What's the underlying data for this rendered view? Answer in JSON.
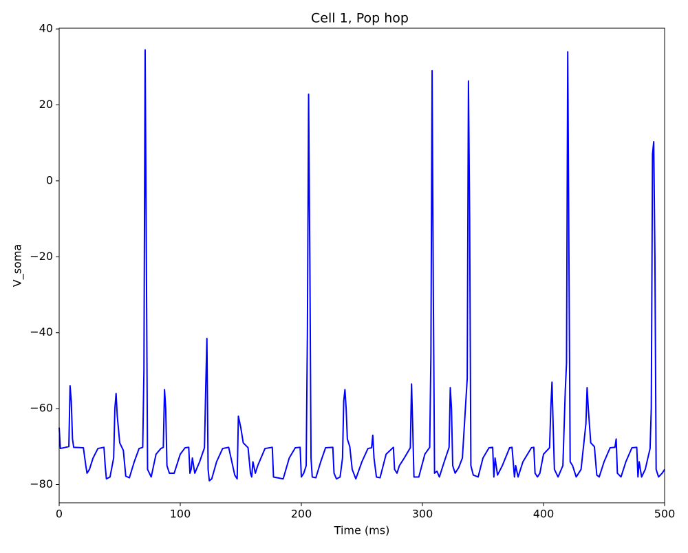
{
  "chart_data": {
    "type": "line",
    "title": "Cell 1, Pop hop",
    "x_label": "Time (ms)",
    "y_label": "V_soma",
    "color": "#0000ff",
    "xlim": [
      0,
      500
    ],
    "ylim": [
      -84.8,
      40.2
    ],
    "xticks": [
      0,
      100,
      200,
      300,
      400,
      500
    ],
    "yticks": [
      {
        "value": -80,
        "label": "−80"
      },
      {
        "value": -60,
        "label": "−60"
      },
      {
        "value": -40,
        "label": "−40"
      },
      {
        "value": -20,
        "label": "−20"
      },
      0,
      20,
      40
    ],
    "x": [
      0,
      1,
      8,
      9,
      10,
      11,
      12,
      20,
      22,
      23,
      25,
      28,
      32,
      37,
      38,
      39,
      42,
      45,
      46,
      47,
      48,
      50,
      53,
      55,
      58,
      62,
      66,
      69,
      70,
      71,
      72,
      73,
      76,
      80,
      84,
      86,
      87,
      88,
      89,
      91,
      95,
      100,
      104,
      107,
      108,
      109,
      110,
      112,
      116,
      120,
      121,
      122,
      123,
      124,
      126,
      130,
      135,
      140,
      145,
      147,
      148,
      150,
      152,
      156,
      158,
      159,
      160,
      162,
      164,
      170,
      176,
      177,
      185,
      190,
      195,
      199,
      200,
      202,
      204,
      205,
      206,
      207,
      208,
      209,
      212,
      216,
      220,
      226,
      227,
      229,
      232,
      234,
      235,
      236,
      237,
      238,
      240,
      242,
      245,
      250,
      255,
      258,
      259,
      260,
      262,
      265,
      270,
      276,
      277,
      279,
      281,
      285,
      290,
      291,
      292,
      293,
      297,
      302,
      306,
      307,
      308,
      309,
      310,
      312,
      314,
      318,
      322,
      323,
      324,
      325,
      327,
      330,
      333,
      337,
      338,
      339,
      340,
      342,
      346,
      350,
      355,
      358,
      359,
      360,
      362,
      366,
      372,
      374,
      376,
      377,
      379,
      383,
      390,
      392,
      393,
      395,
      397,
      400,
      405,
      406,
      407,
      408,
      409,
      412,
      416,
      418,
      419,
      420,
      421,
      422,
      424,
      427,
      431,
      435,
      436,
      437,
      439,
      442,
      444,
      446,
      450,
      455,
      459,
      460,
      461,
      464,
      468,
      473,
      477,
      478,
      479,
      481,
      484,
      488,
      489,
      490,
      491,
      492,
      493,
      495,
      498,
      500
    ],
    "values": [
      -65,
      -70.5,
      -70,
      -54,
      -58,
      -68,
      -70.2,
      -70.3,
      -75,
      -77,
      -76,
      -73,
      -70.5,
      -70.2,
      -75,
      -78.5,
      -78,
      -73,
      -60,
      -56,
      -62,
      -69,
      -71,
      -77.8,
      -78.2,
      -74,
      -70.5,
      -70.2,
      -50,
      34.5,
      -20,
      -76,
      -78,
      -72,
      -70.5,
      -70.2,
      -55,
      -60,
      -75,
      -77,
      -77,
      -72,
      -70.3,
      -70.2,
      -77,
      -76,
      -73,
      -77,
      -74,
      -70.3,
      -55,
      -41.5,
      -76,
      -79,
      -78.5,
      -74,
      -70.5,
      -70.2,
      -77.5,
      -78.5,
      -62,
      -65,
      -69,
      -70.3,
      -77,
      -78,
      -74,
      -77,
      -75,
      -70.5,
      -70.2,
      -78,
      -78.5,
      -73,
      -70.3,
      -70.2,
      -78,
      -77,
      -75,
      -40,
      22.8,
      -20,
      -73,
      -78,
      -78.2,
      -74,
      -70.3,
      -70.2,
      -77,
      -78.5,
      -78,
      -73,
      -58,
      -55,
      -60,
      -68,
      -70,
      -76,
      -78.5,
      -74,
      -70.5,
      -70.3,
      -67,
      -73,
      -78,
      -78.2,
      -72,
      -70.2,
      -76,
      -77,
      -75,
      -73,
      -70.3,
      -53.5,
      -65,
      -78,
      -78,
      -72,
      -70.2,
      -46,
      29,
      -30,
      -77,
      -76.5,
      -78,
      -74,
      -70.2,
      -54.5,
      -60,
      -75,
      -77,
      -75.5,
      -73,
      -52,
      26.3,
      -10,
      -75,
      -77.5,
      -78,
      -73,
      -70.3,
      -70.2,
      -78,
      -73,
      -77.5,
      -75,
      -70.3,
      -70.2,
      -78,
      -75,
      -78,
      -74,
      -70.3,
      -70.2,
      -77,
      -78,
      -77,
      -72,
      -70.3,
      -60,
      -53,
      -65,
      -76,
      -78,
      -75,
      -55,
      -48,
      34,
      -20,
      -74,
      -75,
      -78,
      -76,
      -64,
      -54.5,
      -60,
      -69,
      -70,
      -77.5,
      -78,
      -74,
      -70.3,
      -70.2,
      -68,
      -77,
      -78,
      -74,
      -70.3,
      -70.2,
      -78,
      -74,
      -78,
      -76,
      -70.5,
      -60,
      7,
      10.3,
      -20,
      -76,
      -78,
      -77,
      -76
    ]
  }
}
